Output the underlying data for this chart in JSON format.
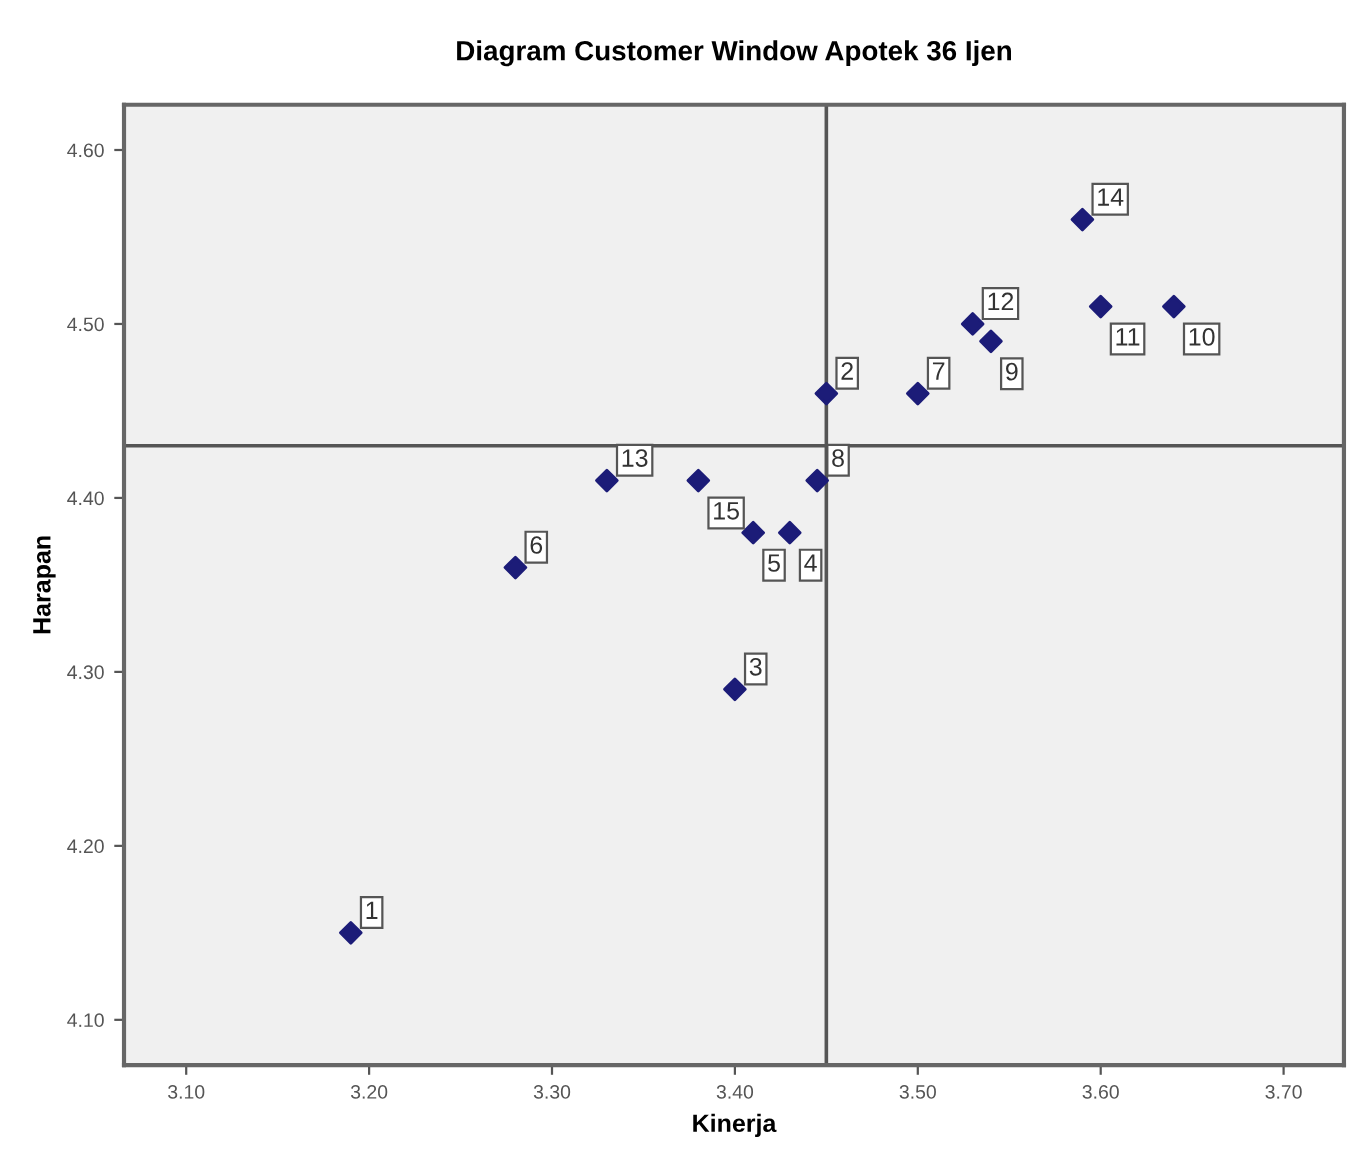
{
  "chart_data": {
    "type": "scatter",
    "title": "Diagram Customer Window Apotek 36 Ijen",
    "xlabel": "Kinerja",
    "ylabel": "Harapan",
    "x": [
      3.19,
      3.45,
      3.4,
      3.43,
      3.41,
      3.28,
      3.5,
      3.445,
      3.54,
      3.64,
      3.6,
      3.53,
      3.33,
      3.59,
      3.38
    ],
    "series": [
      {
        "color": "#1c1c78",
        "values": [
          4.15,
          4.46,
          4.29,
          4.38,
          4.38,
          4.36,
          4.46,
          4.41,
          4.49,
          4.51,
          4.51,
          4.5,
          4.41,
          4.56,
          4.41
        ]
      }
    ],
    "annotations": [
      {
        "text": "1",
        "x": 3.19,
        "y": 4.15
      },
      {
        "text": "2",
        "x": 3.45,
        "y": 4.46
      },
      {
        "text": "3",
        "x": 3.4,
        "y": 4.29
      },
      {
        "text": "4",
        "x": 3.43,
        "y": 4.38
      },
      {
        "text": "5",
        "x": 3.41,
        "y": 4.38
      },
      {
        "text": "6",
        "x": 3.28,
        "y": 4.36
      },
      {
        "text": "7",
        "x": 3.5,
        "y": 4.46
      },
      {
        "text": "8",
        "x": 3.445,
        "y": 4.41
      },
      {
        "text": "9",
        "x": 3.54,
        "y": 4.49
      },
      {
        "text": "10",
        "x": 3.64,
        "y": 4.51
      },
      {
        "text": "11",
        "x": 3.6,
        "y": 4.51
      },
      {
        "text": "12",
        "x": 3.53,
        "y": 4.5
      },
      {
        "text": "13",
        "x": 3.33,
        "y": 4.41
      },
      {
        "text": "14",
        "x": 3.59,
        "y": 4.56
      },
      {
        "text": "15",
        "x": 3.38,
        "y": 4.41
      }
    ],
    "ref_lines": [
      {
        "axis": "x",
        "value": 3.45,
        "color": "#555555"
      },
      {
        "axis": "y",
        "value": 4.43,
        "color": "#555555"
      }
    ],
    "xlim": [
      3.066,
      3.733
    ],
    "ylim": [
      4.074,
      4.626
    ],
    "xticks": [
      {
        "value": 3.1,
        "label": "3.10"
      },
      {
        "value": 3.2,
        "label": "3.20"
      },
      {
        "value": 3.3,
        "label": "3.30"
      },
      {
        "value": 3.4,
        "label": "3.40"
      },
      {
        "value": 3.5,
        "label": "3.50"
      },
      {
        "value": 3.6,
        "label": "3.60"
      },
      {
        "value": 3.7,
        "label": "3.70"
      }
    ],
    "yticks": [
      {
        "value": 4.1,
        "label": "4.10"
      },
      {
        "value": 4.2,
        "label": "4.20"
      },
      {
        "value": 4.3,
        "label": "4.30"
      },
      {
        "value": 4.4,
        "label": "4.40"
      },
      {
        "value": 4.5,
        "label": "4.50"
      },
      {
        "value": 4.6,
        "label": "4.60"
      }
    ],
    "marker": "diamond",
    "grid": false
  }
}
